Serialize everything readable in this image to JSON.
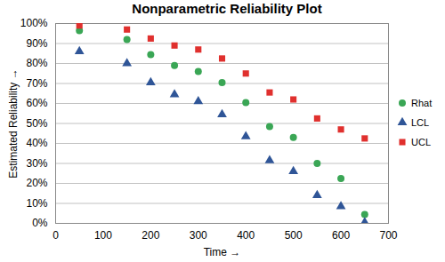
{
  "chart_data": {
    "type": "scatter",
    "title": "Nonparametric Reliability Plot",
    "x_label": "Time",
    "y_label": "Estimated Reliability",
    "x": [
      50,
      150,
      200,
      250,
      300,
      350,
      400,
      450,
      500,
      550,
      600,
      650
    ],
    "series": [
      {
        "name": "Rhat",
        "color": "#3aa655",
        "marker": "circle",
        "values": [
          96.5,
          92,
          84.5,
          79,
          76,
          70.5,
          60.5,
          48.5,
          43,
          30,
          22.5,
          4.5
        ]
      },
      {
        "name": "LCL",
        "color": "#2f5597",
        "marker": "triangle",
        "values": [
          86,
          80,
          70.5,
          64.5,
          61,
          54.5,
          43.5,
          31.5,
          26,
          14,
          8.5,
          0.5
        ]
      },
      {
        "name": "UCL",
        "color": "#e0302e",
        "marker": "square",
        "values": [
          99,
          97,
          92.5,
          89,
          87,
          82.5,
          75,
          65.5,
          62,
          52.5,
          47,
          42.5
        ]
      }
    ],
    "xlim": [
      0,
      700
    ],
    "xticks": [
      0,
      100,
      200,
      300,
      400,
      500,
      600,
      700
    ],
    "ylim": [
      0,
      100
    ],
    "yticks": [
      {
        "value": 0,
        "label": "0%"
      },
      {
        "value": 10,
        "label": "10%"
      },
      {
        "value": 20,
        "label": "20%"
      },
      {
        "value": 30,
        "label": "30%"
      },
      {
        "value": 40,
        "label": "40%"
      },
      {
        "value": 50,
        "label": "50%"
      },
      {
        "value": 60,
        "label": "60%"
      },
      {
        "value": 70,
        "label": "70%"
      },
      {
        "value": 80,
        "label": "80%"
      },
      {
        "value": 90,
        "label": "90%"
      },
      {
        "value": 100,
        "label": "100%"
      }
    ],
    "grid": true,
    "legend": "right"
  }
}
